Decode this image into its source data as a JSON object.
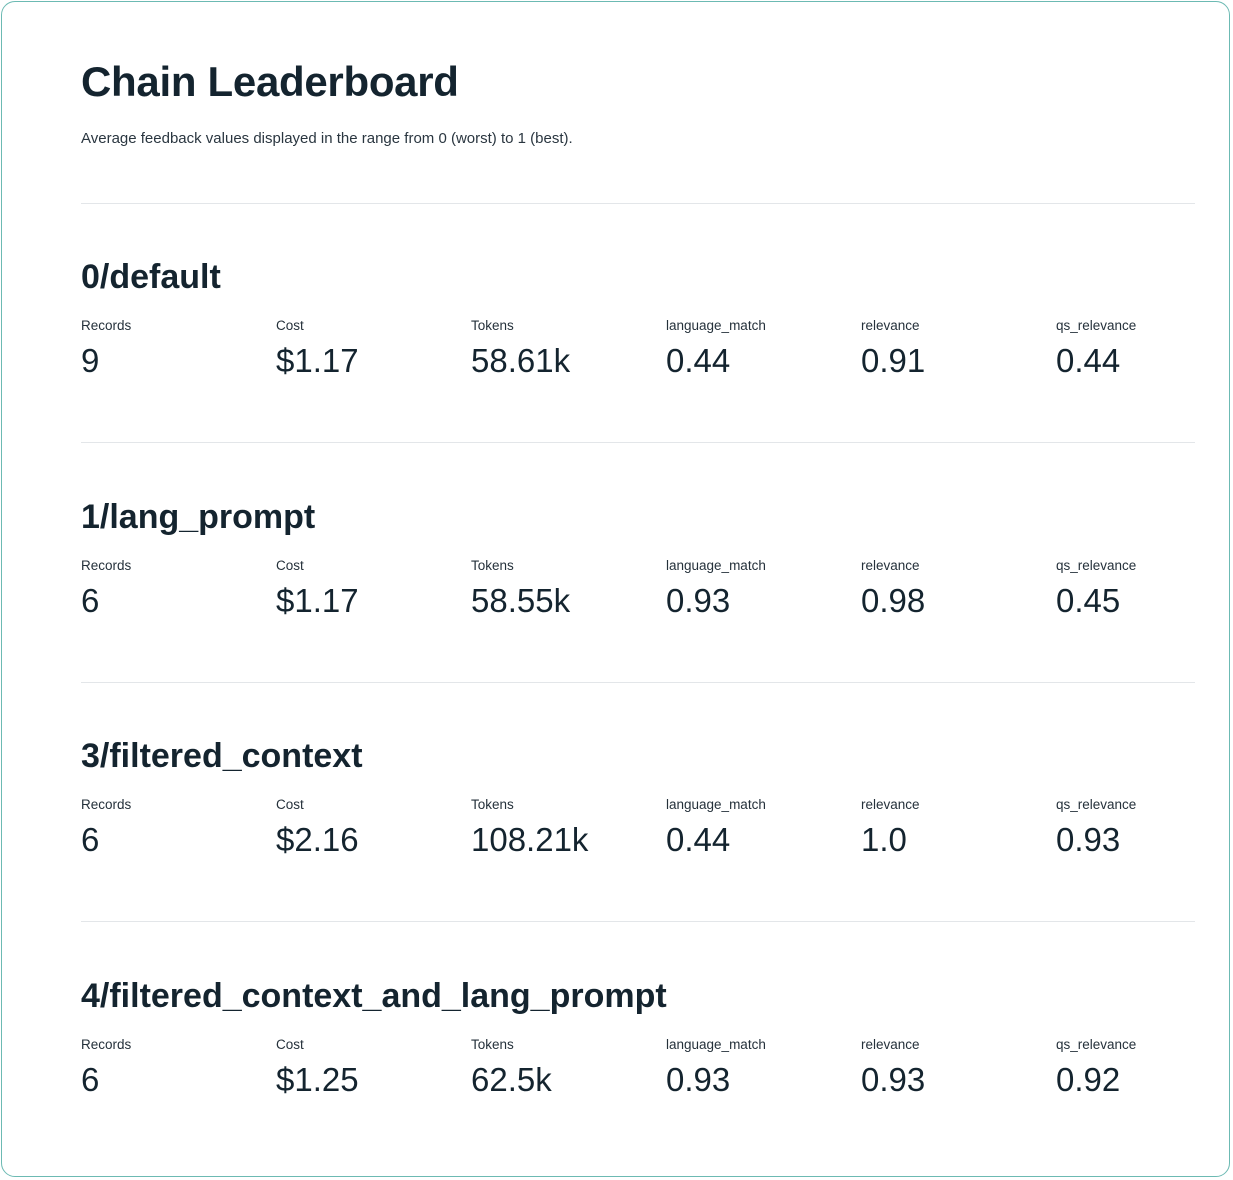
{
  "page": {
    "title": "Chain Leaderboard",
    "subtitle": "Average feedback values displayed in the range from 0 (worst) to 1 (best)."
  },
  "metric_labels": [
    "Records",
    "Cost",
    "Tokens",
    "language_match",
    "relevance",
    "qs_relevance"
  ],
  "apps": [
    {
      "name": "0/default",
      "values": [
        "9",
        "$1.17",
        "58.61k",
        "0.44",
        "0.91",
        "0.44"
      ]
    },
    {
      "name": "1/lang_prompt",
      "values": [
        "6",
        "$1.17",
        "58.55k",
        "0.93",
        "0.98",
        "0.45"
      ]
    },
    {
      "name": "3/filtered_context",
      "values": [
        "6",
        "$2.16",
        "108.21k",
        "0.44",
        "1.0",
        "0.93"
      ]
    },
    {
      "name": "4/filtered_context_and_lang_prompt",
      "values": [
        "6",
        "$1.25",
        "62.5k",
        "0.93",
        "0.93",
        "0.92"
      ]
    }
  ]
}
